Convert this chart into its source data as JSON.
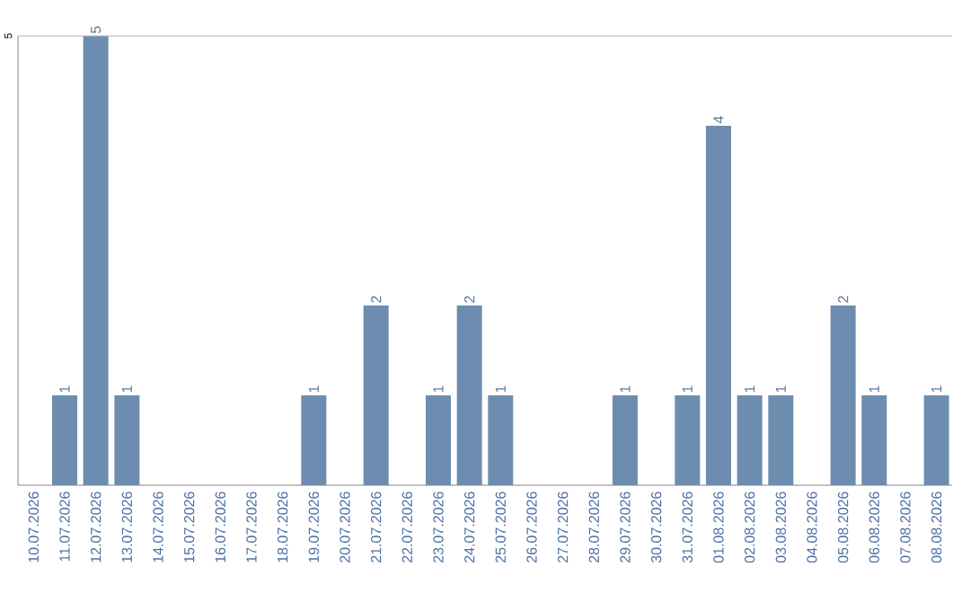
{
  "chart_data": {
    "type": "bar",
    "categories": [
      "10.07.2026",
      "11.07.2026",
      "12.07.2026",
      "13.07.2026",
      "14.07.2026",
      "15.07.2026",
      "16.07.2026",
      "17.07.2026",
      "18.07.2026",
      "19.07.2026",
      "20.07.2026",
      "21.07.2026",
      "22.07.2026",
      "23.07.2026",
      "24.07.2026",
      "25.07.2026",
      "26.07.2026",
      "27.07.2026",
      "28.07.2026",
      "29.07.2026",
      "30.07.2026",
      "31.07.2026",
      "01.08.2026",
      "02.08.2026",
      "03.08.2026",
      "04.08.2026",
      "05.08.2026",
      "06.08.2026",
      "07.08.2026",
      "08.08.2026"
    ],
    "values": [
      0,
      1,
      5,
      1,
      0,
      0,
      0,
      0,
      0,
      1,
      0,
      2,
      0,
      1,
      2,
      1,
      0,
      0,
      0,
      1,
      0,
      1,
      4,
      1,
      1,
      0,
      2,
      1,
      0,
      1
    ],
    "value_labels": [
      null,
      "1",
      "5",
      "1",
      null,
      null,
      null,
      null,
      null,
      "1",
      null,
      "2",
      null,
      "1",
      "2",
      "1",
      null,
      null,
      null,
      "1",
      null,
      "1",
      "4",
      "1",
      "1",
      null,
      "2",
      "1",
      null,
      "1"
    ],
    "color": "#6d8db0",
    "ylim": [
      0,
      5
    ],
    "yticks": [
      5
    ]
  }
}
